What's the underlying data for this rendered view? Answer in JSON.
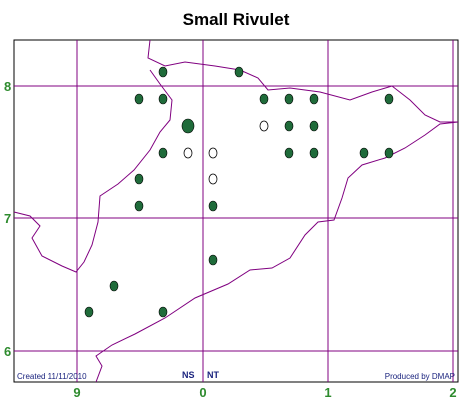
{
  "title": "Small Rivulet",
  "grid": {
    "row_labels": [
      "8",
      "7",
      "6"
    ],
    "column_labels": [
      "9",
      "0",
      "1",
      "2"
    ]
  },
  "footer": {
    "created": "Created 11/11/2010",
    "zone_labels": [
      "NS",
      "NT"
    ],
    "producer": "Produced by DMAP"
  }
}
